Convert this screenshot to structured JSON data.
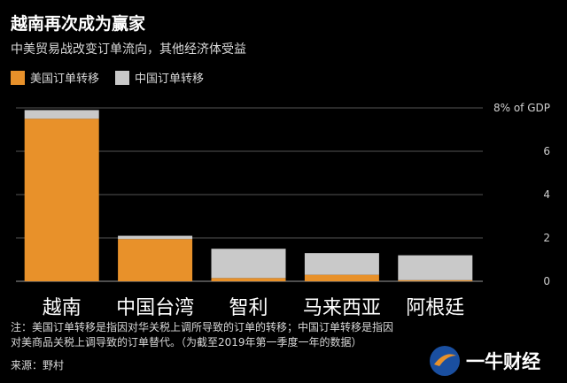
{
  "title": "越南再次成为赢家",
  "subtitle": "中美贸易战改变订单流向，其他经济体受益",
  "note_lines": [
    "注：美国订单转移是指因对华关税上调所导致的订单的转移；中国订单转移是指因",
    "对美商品关税上调导致的订单替代。（为截至2019年第一季度一年的数据）"
  ],
  "source": "来源：野村",
  "logo_text": "一牛财经",
  "colors": {
    "us": "#E8912A",
    "cn": "#C9C9C9",
    "background": "#000000",
    "grid": "#555555"
  },
  "chart_data": {
    "type": "bar",
    "stacked": true,
    "title": "越南再次成为赢家",
    "subtitle": "中美贸易战改变订单流向，其他经济体受益",
    "categories": [
      "越南",
      "中国台湾",
      "智利",
      "马来西亚",
      "阿根廷"
    ],
    "series": [
      {
        "name": "美国订单转移",
        "values": [
          7.5,
          1.95,
          0.15,
          0.3,
          0.05
        ]
      },
      {
        "name": "中国订单转移",
        "values": [
          0.4,
          0.15,
          1.35,
          1.0,
          1.15
        ]
      }
    ],
    "yticks": [
      0,
      2,
      4,
      6,
      8
    ],
    "ytick_labels": [
      "0",
      "2",
      "4",
      "6",
      "8% of GDP"
    ],
    "ylim": [
      0,
      8
    ],
    "grid": true,
    "legend_position": "top-left"
  }
}
